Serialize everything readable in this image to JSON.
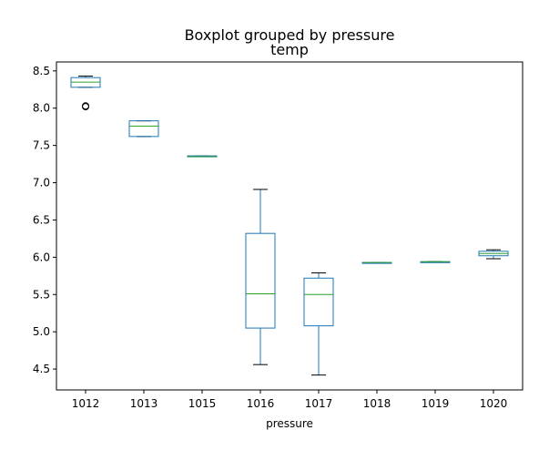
{
  "chart_data": {
    "type": "box",
    "suptitle": "Boxplot grouped by pressure",
    "title": "temp",
    "xlabel": "pressure",
    "ylabel": "",
    "ylim": [
      4.22,
      8.62
    ],
    "yticks": [
      4.5,
      5.0,
      5.5,
      6.0,
      6.5,
      7.0,
      7.5,
      8.0,
      8.5
    ],
    "ytick_labels": [
      "4.5",
      "5.0",
      "5.5",
      "6.0",
      "6.5",
      "7.0",
      "7.5",
      "8.0",
      "8.5"
    ],
    "grid": false,
    "colors": {
      "box": "#1f77b4",
      "median": "#2ca02c",
      "whisker": "#1f77b4",
      "cap": "#000000",
      "flier": "#000000"
    },
    "categories": [
      "1012",
      "1013",
      "1015",
      "1016",
      "1017",
      "1018",
      "1019",
      "1020"
    ],
    "boxes": [
      {
        "label": "1012",
        "whislo": 8.28,
        "q1": 8.28,
        "med": 8.35,
        "q3": 8.41,
        "whishi": 8.43,
        "fliers": [
          8.02,
          8.03
        ]
      },
      {
        "label": "1013",
        "whislo": 7.62,
        "q1": 7.62,
        "med": 7.76,
        "q3": 7.83,
        "whishi": 7.83,
        "fliers": []
      },
      {
        "label": "1015",
        "whislo": 7.35,
        "q1": 7.35,
        "med": 7.35,
        "q3": 7.36,
        "whishi": 7.36,
        "fliers": []
      },
      {
        "label": "1016",
        "whislo": 4.56,
        "q1": 5.05,
        "med": 5.51,
        "q3": 6.32,
        "whishi": 6.91,
        "fliers": []
      },
      {
        "label": "1017",
        "whislo": 4.42,
        "q1": 5.08,
        "med": 5.5,
        "q3": 5.72,
        "whishi": 5.79,
        "fliers": []
      },
      {
        "label": "1018",
        "whislo": 5.92,
        "q1": 5.92,
        "med": 5.93,
        "q3": 5.93,
        "whishi": 5.93,
        "fliers": []
      },
      {
        "label": "1019",
        "whislo": 5.94,
        "q1": 5.94,
        "med": 5.94,
        "q3": 5.94,
        "whishi": 5.94,
        "fliers": []
      },
      {
        "label": "1020",
        "whislo": 5.98,
        "q1": 6.02,
        "med": 6.05,
        "q3": 6.08,
        "whishi": 6.1,
        "fliers": []
      }
    ]
  }
}
